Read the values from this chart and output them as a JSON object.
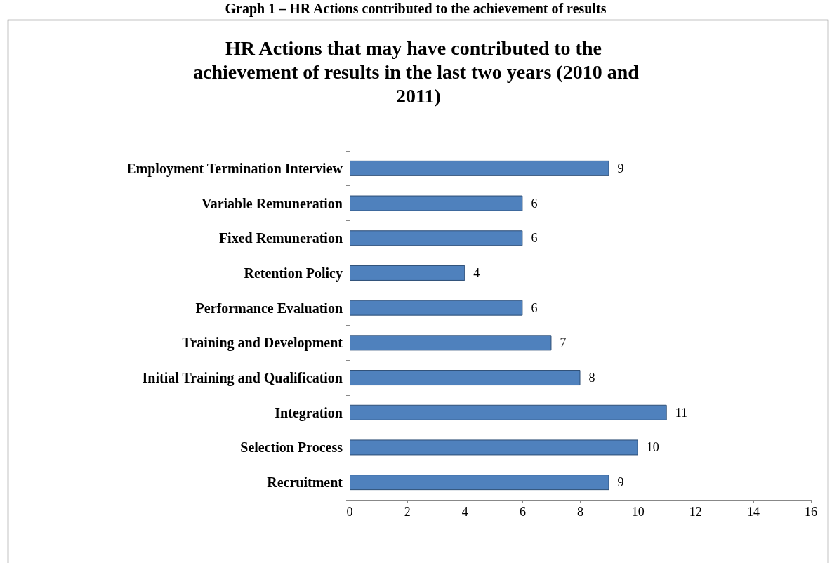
{
  "chart_data": {
    "type": "bar",
    "orientation": "horizontal",
    "title": "HR Actions that may have contributed to the achievement of results in the last two years (2010 and 2011)",
    "annotations": [
      "Graph 1 – HR Actions contributed to the achievement of results"
    ],
    "categories": [
      "Employment Termination Interview",
      "Variable Remuneration",
      "Fixed Remuneration",
      "Retention Policy",
      "Performance Evaluation",
      "Training and Development",
      "Initial Training and Qualification",
      "Integration",
      "Selection Process",
      "Recruitment"
    ],
    "values": [
      9,
      6,
      6,
      4,
      6,
      7,
      8,
      11,
      10,
      9
    ],
    "color": "#4f81bd",
    "xlim": [
      0,
      16
    ],
    "xticks": [
      0,
      2,
      4,
      6,
      8,
      10,
      12,
      14,
      16
    ],
    "data_labels": true,
    "grid": false
  }
}
